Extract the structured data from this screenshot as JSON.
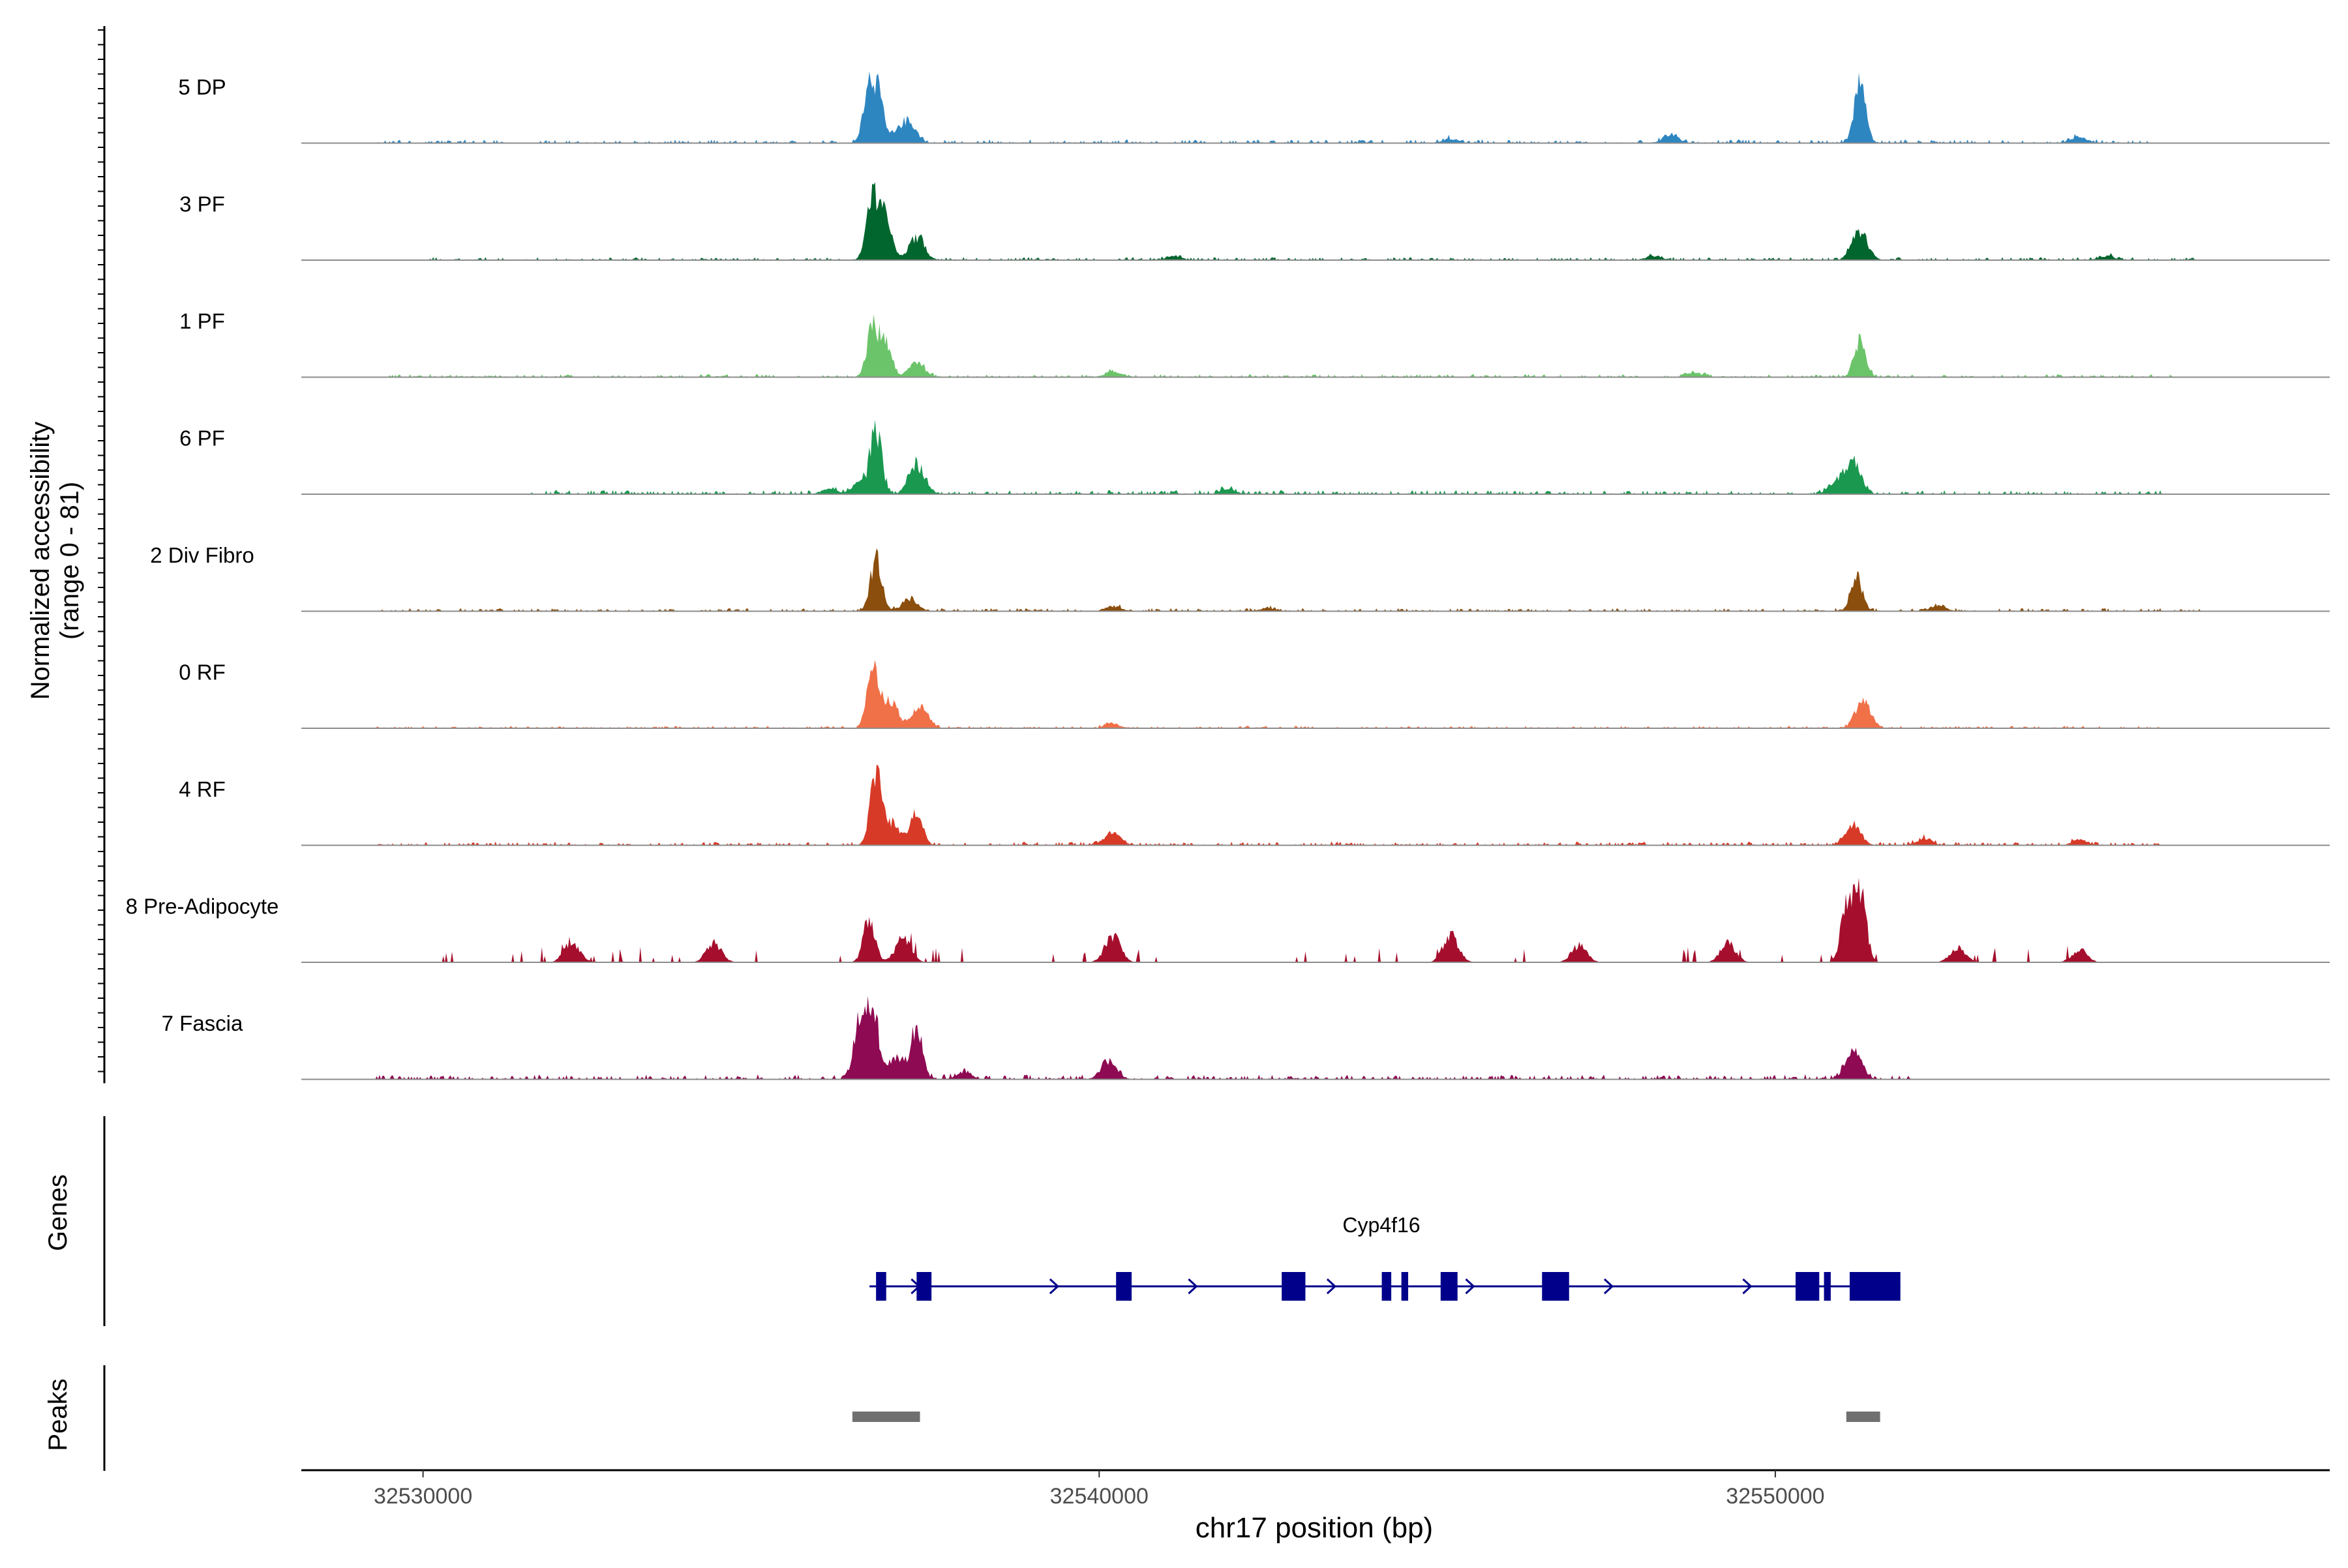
{
  "chart_data": {
    "type": "area",
    "title": "",
    "ylabel_line1": "Normalized accessibility",
    "ylabel_line2": "(range 0 - 81)",
    "xlabel": "chr17 position (bp)",
    "xlim": [
      32528200,
      32558200
    ],
    "ylim": [
      0,
      81
    ],
    "x_ticks": [
      32530000,
      32540000,
      32550000
    ],
    "x_tick_labels": [
      "32530000",
      "32540000",
      "32550000"
    ],
    "tracks": [
      {
        "name": "5 DP",
        "color": "#2E86C1",
        "peaks": [
          [
            32536600,
            58
          ],
          [
            32536750,
            35
          ],
          [
            32537200,
            16
          ],
          [
            32537050,
            10
          ],
          [
            32551250,
            57
          ],
          [
            32554500,
            6
          ],
          [
            32548450,
            8
          ],
          [
            32545200,
            4
          ]
        ],
        "noise": 3,
        "extent": [
          32529300,
          32555600
        ]
      },
      {
        "name": "3 PF",
        "color": "#00662E",
        "peaks": [
          [
            32536650,
            64
          ],
          [
            32536850,
            40
          ],
          [
            32537300,
            22
          ],
          [
            32551250,
            28
          ],
          [
            32554900,
            4
          ],
          [
            32548200,
            4
          ],
          [
            32541100,
            4
          ]
        ],
        "noise": 2.5,
        "extent": [
          32530100,
          32556200
        ]
      },
      {
        "name": "1 PF",
        "color": "#6CC46A",
        "peaks": [
          [
            32536650,
            48
          ],
          [
            32536850,
            32
          ],
          [
            32537300,
            14
          ],
          [
            32551250,
            35
          ],
          [
            32540200,
            5
          ],
          [
            32548800,
            4
          ]
        ],
        "noise": 2.5,
        "extent": [
          32529300,
          32556000
        ]
      },
      {
        "name": "6 PF",
        "color": "#1A9850",
        "peaks": [
          [
            32536700,
            58
          ],
          [
            32537300,
            28
          ],
          [
            32536450,
            10
          ],
          [
            32551150,
            30
          ],
          [
            32550900,
            12
          ],
          [
            32541900,
            5
          ],
          [
            32536000,
            5
          ]
        ],
        "noise": 3.5,
        "extent": [
          32531600,
          32555700
        ]
      },
      {
        "name": "2 Div Fibro",
        "color": "#8B4E0D",
        "peaks": [
          [
            32536700,
            50
          ],
          [
            32537200,
            12
          ],
          [
            32551200,
            33
          ],
          [
            32552400,
            5
          ],
          [
            32540200,
            5
          ],
          [
            32542500,
            3
          ]
        ],
        "noise": 2.5,
        "extent": [
          32529300,
          32556400
        ]
      },
      {
        "name": "0 RF",
        "color": "#F07048",
        "peaks": [
          [
            32536650,
            55
          ],
          [
            32536900,
            28
          ],
          [
            32537350,
            20
          ],
          [
            32551300,
            25
          ],
          [
            32540200,
            4
          ]
        ],
        "noise": 2,
        "extent": [
          32529300,
          32555700
        ]
      },
      {
        "name": "4 RF",
        "color": "#D83A28",
        "peaks": [
          [
            32536700,
            66
          ],
          [
            32537300,
            34
          ],
          [
            32536950,
            20
          ],
          [
            32540200,
            12
          ],
          [
            32551150,
            20
          ],
          [
            32552200,
            6
          ],
          [
            32554500,
            5
          ]
        ],
        "noise": 3,
        "extent": [
          32529300,
          32555700
        ]
      },
      {
        "name": "8 Pre-Adipocyte",
        "color": "#A50F2D",
        "peaks": [
          [
            32551250,
            70
          ],
          [
            32551050,
            50
          ],
          [
            32536600,
            42
          ],
          [
            32537100,
            22
          ],
          [
            32540200,
            26
          ],
          [
            32545200,
            26
          ],
          [
            32532200,
            20
          ],
          [
            32534300,
            18
          ],
          [
            32547100,
            16
          ],
          [
            32549300,
            18
          ],
          [
            32552700,
            14
          ],
          [
            32554500,
            12
          ]
        ],
        "noise": 5,
        "sparse": true,
        "extent": [
          32530200,
          32554700
        ]
      },
      {
        "name": "7 Fascia",
        "color": "#8E0A52",
        "peaks": [
          [
            32536650,
            70
          ],
          [
            32536450,
            50
          ],
          [
            32537300,
            48
          ],
          [
            32537000,
            22
          ],
          [
            32540150,
            18
          ],
          [
            32551150,
            30
          ],
          [
            32538000,
            6
          ]
        ],
        "noise": 4,
        "extent": [
          32529300,
          32552000
        ]
      }
    ],
    "genes_label": "Genes",
    "peaks_label": "Peaks",
    "gene": {
      "name": "Cyp4f16",
      "start": 32536700,
      "end": 32551850,
      "strand": "+",
      "color": "#00008B",
      "exons": [
        [
          32536700,
          32536850
        ],
        [
          32537300,
          32537520
        ],
        [
          32540250,
          32540480
        ],
        [
          32542700,
          32543050
        ],
        [
          32544180,
          32544320
        ],
        [
          32544470,
          32544570
        ],
        [
          32545050,
          32545300
        ],
        [
          32546550,
          32546950
        ],
        [
          32550300,
          32550650
        ],
        [
          32550720,
          32550820
        ],
        [
          32551100,
          32551850
        ]
      ]
    },
    "peak_regions": [
      [
        32536350,
        32537350
      ],
      [
        32551050,
        32551550
      ]
    ],
    "peak_color": "#707070"
  }
}
